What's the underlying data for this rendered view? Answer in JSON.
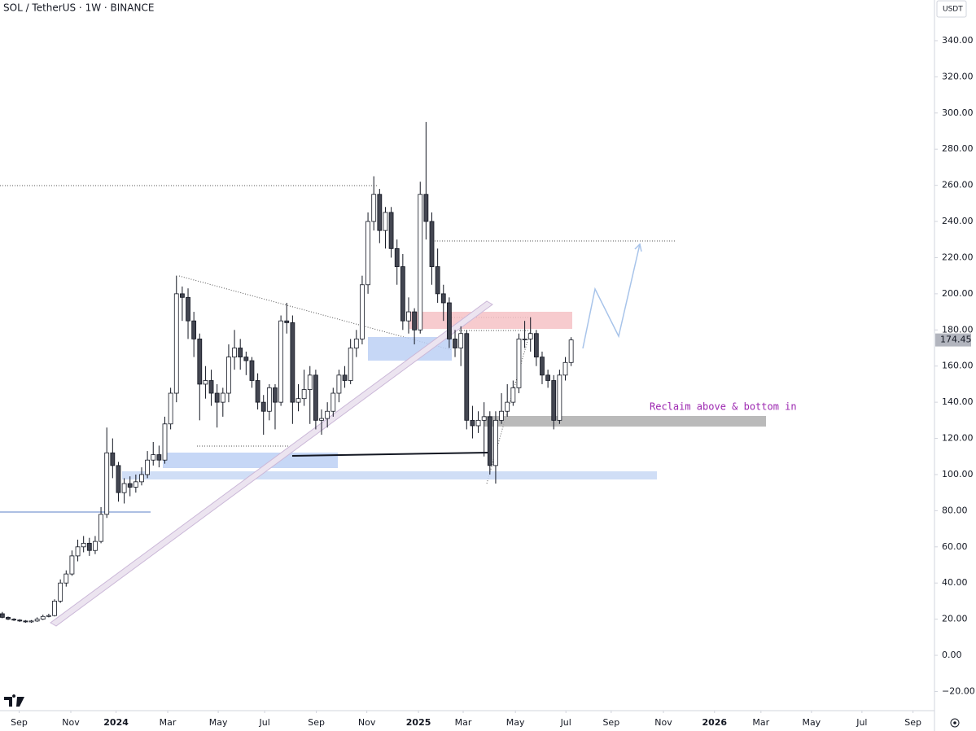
{
  "chart_data": {
    "type": "candlestick",
    "title": "SOL / TetherUS · 1W · BINANCE",
    "y_axis_label": "USDT",
    "annotation": "Reclaim above & bottom in",
    "up_color": "#ffffff",
    "down_color": "#434651",
    "wick_color": "#131722",
    "x": [
      0,
      1,
      2,
      3,
      4,
      5,
      6,
      7,
      8,
      9,
      10,
      11,
      12,
      13,
      14,
      15,
      16,
      17,
      18,
      19,
      20,
      21,
      22,
      23,
      24,
      25,
      26,
      27,
      28,
      29,
      30,
      31,
      32,
      33,
      34,
      35,
      36,
      37,
      38,
      39,
      40,
      41,
      42,
      43,
      44,
      45,
      46,
      47,
      48,
      49,
      50,
      51,
      52,
      53,
      54,
      55,
      56,
      57,
      58,
      59,
      60,
      61,
      62,
      63,
      64,
      65,
      66,
      67,
      68,
      69,
      70,
      71,
      72,
      73,
      74,
      75,
      76,
      77,
      78,
      79,
      80,
      81,
      82,
      83,
      84,
      85,
      86,
      87,
      88,
      89,
      90,
      91,
      92,
      93,
      94,
      95,
      96,
      97,
      98
    ],
    "open": [
      23,
      21,
      20,
      19.5,
      19,
      18.5,
      19,
      20,
      21.5,
      22,
      30,
      40,
      45,
      55,
      60,
      62,
      58,
      63,
      78,
      112,
      105,
      90,
      95,
      93,
      96,
      100,
      108,
      111,
      108,
      128,
      145,
      200,
      198,
      185,
      175,
      150,
      152,
      145,
      140,
      145,
      165,
      170,
      165,
      163,
      152,
      140,
      135,
      148,
      140,
      185,
      184,
      140,
      142,
      147,
      155,
      130,
      131,
      135,
      145,
      155,
      152,
      170,
      175,
      205,
      240,
      255,
      235,
      245,
      225,
      215,
      185,
      190,
      180,
      255,
      240,
      215,
      200,
      195,
      175,
      170,
      178,
      130,
      127,
      130,
      132,
      105,
      130,
      135,
      140,
      148,
      175,
      175,
      178,
      165,
      155,
      152,
      130,
      155,
      162
    ],
    "high": [
      24,
      21.5,
      20.5,
      20,
      19.5,
      19.5,
      21,
      22.5,
      23,
      31,
      42,
      47,
      58,
      64,
      66,
      65,
      66,
      82,
      126,
      120,
      107,
      98,
      99,
      100,
      104,
      113,
      118,
      116,
      132,
      148,
      210,
      204,
      203,
      190,
      178,
      160,
      158,
      150,
      148,
      172,
      180,
      175,
      168,
      165,
      156,
      144,
      150,
      150,
      188,
      195,
      188,
      150,
      158,
      160,
      158,
      136,
      140,
      148,
      158,
      160,
      175,
      180,
      210,
      245,
      265,
      258,
      248,
      248,
      230,
      222,
      198,
      192,
      262,
      295,
      245,
      225,
      205,
      198,
      180,
      182,
      180,
      138,
      135,
      140,
      135,
      135,
      145,
      150,
      152,
      178,
      185,
      187,
      180,
      168,
      158,
      155,
      158,
      165,
      176
    ],
    "low": [
      20.5,
      19.5,
      19,
      18.5,
      18,
      18,
      18.5,
      19.5,
      21,
      21.5,
      29,
      38,
      44,
      52,
      57,
      55,
      56,
      62,
      76,
      98,
      85,
      84,
      88,
      90,
      94,
      98,
      105,
      104,
      106,
      125,
      140,
      185,
      175,
      165,
      130,
      142,
      138,
      126,
      132,
      140,
      158,
      158,
      155,
      148,
      136,
      122,
      130,
      125,
      138,
      178,
      128,
      135,
      138,
      128,
      125,
      122,
      126,
      132,
      140,
      148,
      150,
      165,
      172,
      200,
      235,
      228,
      225,
      220,
      205,
      180,
      178,
      172,
      178,
      230,
      205,
      195,
      185,
      170,
      165,
      160,
      125,
      120,
      123,
      110,
      100,
      95,
      128,
      132,
      138,
      145,
      170,
      168,
      160,
      150,
      148,
      125,
      128,
      152,
      160
    ],
    "close": [
      21,
      20,
      19.5,
      19,
      18.5,
      19,
      20,
      21.5,
      22,
      30,
      40,
      45,
      55,
      60,
      62,
      58,
      63,
      78,
      112,
      105,
      90,
      95,
      93,
      96,
      100,
      108,
      111,
      108,
      128,
      145,
      200,
      198,
      185,
      175,
      150,
      152,
      145,
      140,
      145,
      165,
      170,
      165,
      163,
      152,
      140,
      135,
      148,
      140,
      185,
      184,
      140,
      142,
      147,
      155,
      130,
      131,
      135,
      145,
      155,
      152,
      170,
      175,
      205,
      240,
      255,
      235,
      245,
      225,
      215,
      185,
      190,
      180,
      255,
      240,
      215,
      200,
      195,
      175,
      170,
      178,
      130,
      127,
      130,
      132,
      105,
      130,
      135,
      140,
      148,
      175,
      175,
      178,
      165,
      155,
      152,
      130,
      155,
      162,
      174.45
    ],
    "xlim": [
      -0.4,
      160.6
    ],
    "xticks": [
      {
        "value": 2.9,
        "label": "Sep"
      },
      {
        "value": 11.8,
        "label": "Nov"
      },
      {
        "value": 19.6,
        "label": "2024"
      },
      {
        "value": 28.5,
        "label": "Mar"
      },
      {
        "value": 37.2,
        "label": "May"
      },
      {
        "value": 45.2,
        "label": "Jul"
      },
      {
        "value": 54.1,
        "label": "Sep"
      },
      {
        "value": 62.8,
        "label": "Nov"
      },
      {
        "value": 71.7,
        "label": "2025"
      },
      {
        "value": 79.4,
        "label": "Mar"
      },
      {
        "value": 88.4,
        "label": "May"
      },
      {
        "value": 97.1,
        "label": "Jul"
      },
      {
        "value": 104.9,
        "label": "Sep"
      },
      {
        "value": 113.9,
        "label": "Nov"
      },
      {
        "value": 122.7,
        "label": "2026"
      },
      {
        "value": 130.7,
        "label": "Mar"
      },
      {
        "value": 139.4,
        "label": "May"
      },
      {
        "value": 148.1,
        "label": "Jul"
      },
      {
        "value": 156.9,
        "label": "Sep"
      }
    ],
    "ylim": [
      -30.6,
      362.5
    ],
    "yticks": [
      {
        "value": -20,
        "label": "−20.00"
      },
      {
        "value": 0,
        "label": "0.00"
      },
      {
        "value": 20,
        "label": "20.00"
      },
      {
        "value": 40,
        "label": "40.00"
      },
      {
        "value": 60,
        "label": "60.00"
      },
      {
        "value": 80,
        "label": "80.00"
      },
      {
        "value": 100,
        "label": "100.00"
      },
      {
        "value": 120,
        "label": "120.00"
      },
      {
        "value": 140,
        "label": "140.00"
      },
      {
        "value": 160,
        "label": "160.00"
      },
      {
        "value": 180,
        "label": "180.00"
      },
      {
        "value": 200,
        "label": "200.00"
      },
      {
        "value": 220,
        "label": "220.00"
      },
      {
        "value": 240,
        "label": "240.00"
      },
      {
        "value": 260,
        "label": "260.00"
      },
      {
        "value": 280,
        "label": "280.00"
      },
      {
        "value": 300,
        "label": "300.00"
      },
      {
        "value": 320,
        "label": "320.00"
      },
      {
        "value": 340,
        "label": "340.00"
      }
    ],
    "grid": false
  }
}
